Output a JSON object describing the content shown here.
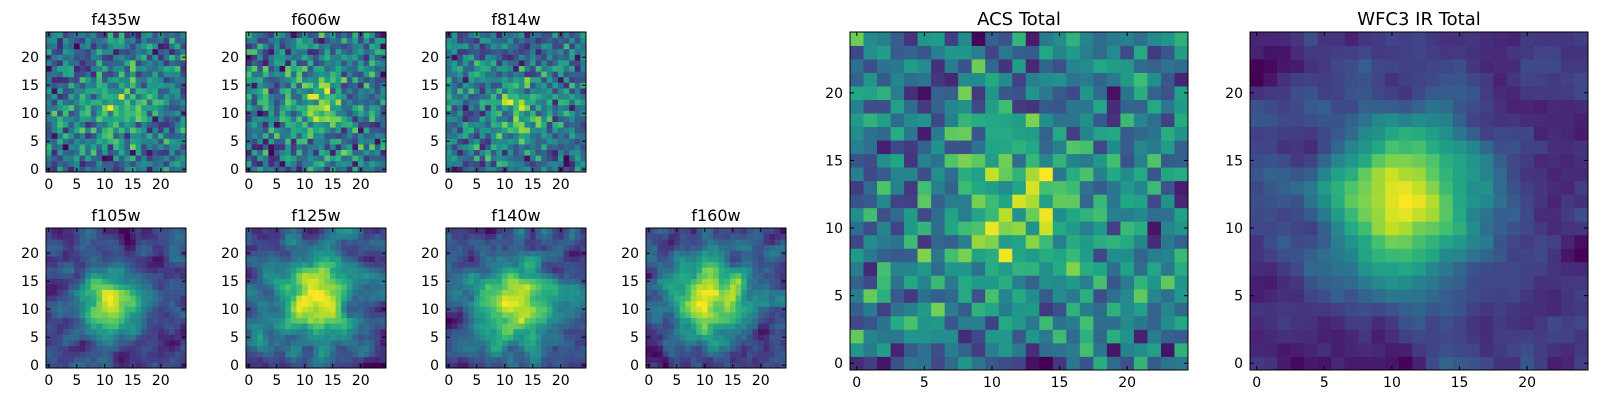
{
  "figure": {
    "description_note": "Grid of 2D pixel intensity maps (heatmaps) with viridis colormap; per-pixel values are not printed in the image."
  },
  "chart_data": [
    {
      "type": "heatmap",
      "title": "f435w",
      "grid_size": 25,
      "xlim": [
        -0.5,
        24.5
      ],
      "ylim": [
        -0.5,
        24.5
      ],
      "xticks": [
        0,
        5,
        10,
        15,
        20
      ],
      "yticks": [
        0,
        5,
        10,
        15,
        20
      ],
      "colormap": "viridis",
      "seed": 11,
      "blob": {
        "cx": 12,
        "cy": 11,
        "strength": 0.18,
        "sigma": 4
      },
      "noise": 0.55,
      "smooth": 0
    },
    {
      "type": "heatmap",
      "title": "f606w",
      "grid_size": 25,
      "xlim": [
        -0.5,
        24.5
      ],
      "ylim": [
        -0.5,
        24.5
      ],
      "xticks": [
        0,
        5,
        10,
        15,
        20
      ],
      "yticks": [
        0,
        5,
        10,
        15,
        20
      ],
      "colormap": "viridis",
      "seed": 23,
      "blob": {
        "cx": 12,
        "cy": 11,
        "strength": 0.2,
        "sigma": 4
      },
      "noise": 0.55,
      "smooth": 0
    },
    {
      "type": "heatmap",
      "title": "f814w",
      "grid_size": 25,
      "xlim": [
        -0.5,
        24.5
      ],
      "ylim": [
        -0.5,
        24.5
      ],
      "xticks": [
        0,
        5,
        10,
        15,
        20
      ],
      "yticks": [
        0,
        5,
        10,
        15,
        20
      ],
      "colormap": "viridis",
      "seed": 37,
      "blob": {
        "cx": 12,
        "cy": 11,
        "strength": 0.22,
        "sigma": 4
      },
      "noise": 0.55,
      "smooth": 0
    },
    {
      "type": "heatmap",
      "title": "f105w",
      "grid_size": 25,
      "xlim": [
        -0.5,
        24.5
      ],
      "ylim": [
        -0.5,
        24.5
      ],
      "xticks": [
        0,
        5,
        10,
        15,
        20
      ],
      "yticks": [
        0,
        5,
        10,
        15,
        20
      ],
      "colormap": "viridis",
      "seed": 41,
      "blob": {
        "cx": 11,
        "cy": 11,
        "strength": 0.35,
        "sigma": 4
      },
      "noise": 0.5,
      "smooth": 1
    },
    {
      "type": "heatmap",
      "title": "f125w",
      "grid_size": 25,
      "xlim": [
        -0.5,
        24.5
      ],
      "ylim": [
        -0.5,
        24.5
      ],
      "xticks": [
        0,
        5,
        10,
        15,
        20
      ],
      "yticks": [
        0,
        5,
        10,
        15,
        20
      ],
      "colormap": "viridis",
      "seed": 53,
      "blob": {
        "cx": 12,
        "cy": 12,
        "strength": 0.3,
        "sigma": 5
      },
      "noise": 0.5,
      "smooth": 1
    },
    {
      "type": "heatmap",
      "title": "f140w",
      "grid_size": 25,
      "xlim": [
        -0.5,
        24.5
      ],
      "ylim": [
        -0.5,
        24.5
      ],
      "xticks": [
        0,
        5,
        10,
        15,
        20
      ],
      "yticks": [
        0,
        5,
        10,
        15,
        20
      ],
      "colormap": "viridis",
      "seed": 67,
      "blob": {
        "cx": 12,
        "cy": 11,
        "strength": 0.32,
        "sigma": 5
      },
      "noise": 0.5,
      "smooth": 1
    },
    {
      "type": "heatmap",
      "title": "f160w",
      "grid_size": 25,
      "xlim": [
        -0.5,
        24.5
      ],
      "ylim": [
        -0.5,
        24.5
      ],
      "xticks": [
        0,
        5,
        10,
        15,
        20
      ],
      "yticks": [
        0,
        5,
        10,
        15,
        20
      ],
      "colormap": "viridis",
      "seed": 79,
      "blob": {
        "cx": 11,
        "cy": 12,
        "strength": 0.3,
        "sigma": 5
      },
      "noise": 0.5,
      "smooth": 1
    },
    {
      "type": "heatmap",
      "title": "ACS Total",
      "grid_size": 25,
      "xlim": [
        -0.5,
        24.5
      ],
      "ylim": [
        -0.5,
        24.5
      ],
      "xticks": [
        0,
        5,
        10,
        15,
        20
      ],
      "yticks": [
        0,
        5,
        10,
        15,
        20
      ],
      "colormap": "viridis",
      "seed": 97,
      "blob": {
        "cx": 12,
        "cy": 11,
        "strength": 0.22,
        "sigma": 4
      },
      "noise": 0.45,
      "smooth": 0
    },
    {
      "type": "heatmap",
      "title": "WFC3 IR Total",
      "grid_size": 25,
      "xlim": [
        -0.5,
        24.5
      ],
      "ylim": [
        -0.5,
        24.5
      ],
      "xticks": [
        0,
        5,
        10,
        15,
        20
      ],
      "yticks": [
        0,
        5,
        10,
        15,
        20
      ],
      "colormap": "viridis",
      "seed": 113,
      "blob": {
        "cx": 11,
        "cy": 12,
        "strength": 0.4,
        "sigma": 4
      },
      "noise": 0.35,
      "smooth": 1
    }
  ]
}
